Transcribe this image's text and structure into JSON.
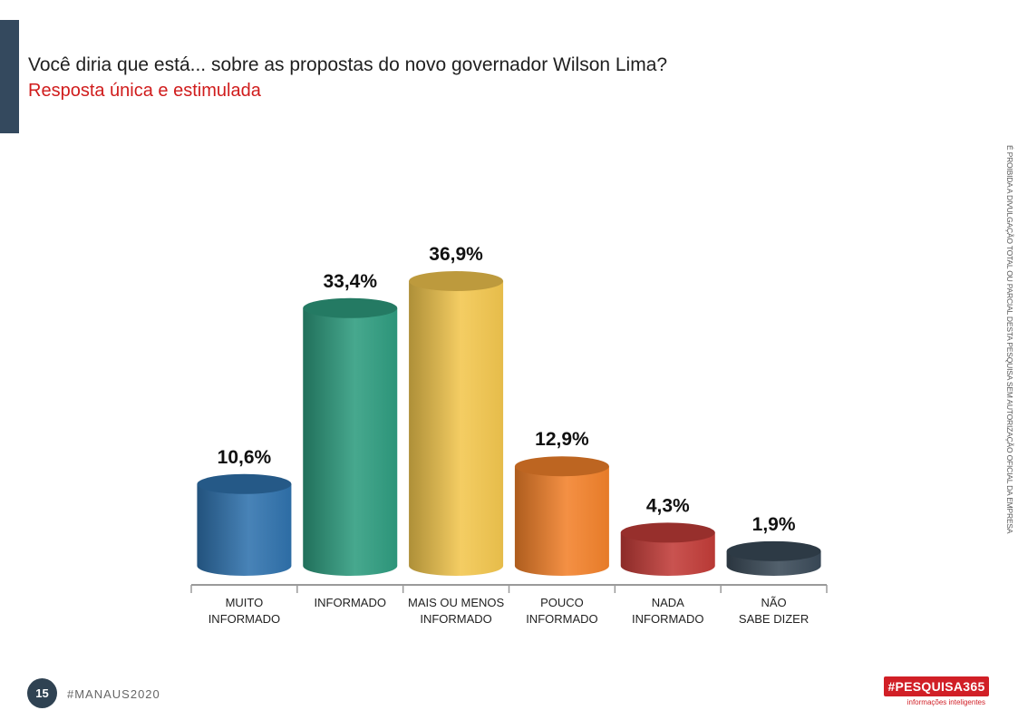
{
  "header": {
    "question": "Você diria que está... sobre as propostas do novo governador Wilson Lima?",
    "subtitle": "Resposta única e estimulada"
  },
  "disclaimer": "É PROIBIDA A DIVULGAÇÃO TOTAL OU PARCIAL DESTA PESQUISA SEM AUTORIZAÇÃO OFICIAL DA EMPRESA",
  "footer": {
    "page_number": "15",
    "hashtag": "#MANAUS2020",
    "logo_text": "#PESQUISA365",
    "logo_tagline": "informações inteligentes"
  },
  "colors": {
    "accent_bar": "#34495e",
    "subtitle": "#d01c1c",
    "logo": "#d11f26"
  },
  "chart_data": {
    "type": "bar",
    "categories": [
      [
        "MUITO",
        "INFORMADO"
      ],
      [
        "INFORMADO"
      ],
      [
        "MAIS OU MENOS",
        "INFORMADO"
      ],
      [
        "POUCO",
        "INFORMADO"
      ],
      [
        "NADA",
        "INFORMADO"
      ],
      [
        "NÃO",
        "SABE DIZER"
      ]
    ],
    "values": [
      10.6,
      33.4,
      36.9,
      12.9,
      4.3,
      1.9
    ],
    "value_labels": [
      "10,6%",
      "33,4%",
      "36,9%",
      "12,9%",
      "4,3%",
      "1,9%"
    ],
    "bar_colors": [
      "#2f72ad",
      "#2e9c7f",
      "#f2c64e",
      "#f2812a",
      "#c23c38",
      "#3a4a58"
    ],
    "ylim": [
      0,
      36.9
    ],
    "style": "3d-cylinder"
  }
}
